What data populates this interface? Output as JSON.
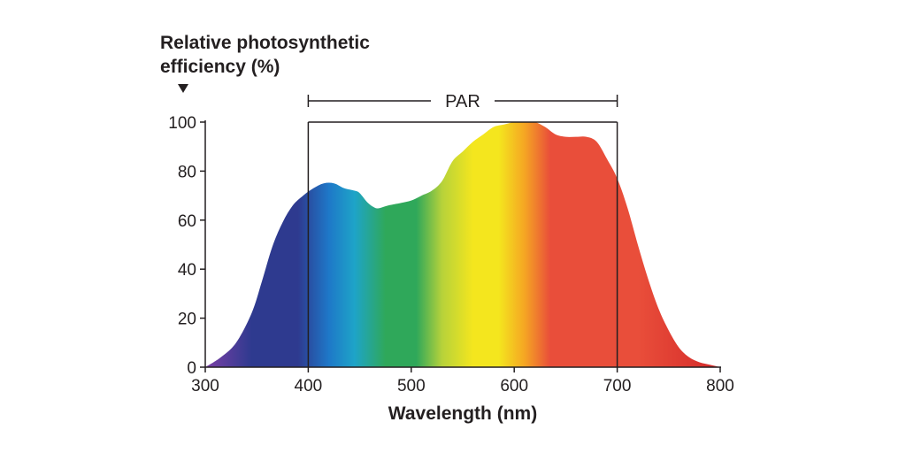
{
  "chart_data": {
    "type": "area",
    "ylabel_line1": "Relative photosynthetic",
    "ylabel_line2": "efficiency (%)",
    "xlabel": "Wavelength (nm)",
    "xlim": [
      300,
      800
    ],
    "ylim": [
      0,
      100
    ],
    "x_ticks": [
      300,
      400,
      500,
      600,
      700,
      800
    ],
    "y_ticks": [
      0,
      20,
      40,
      60,
      80,
      100
    ],
    "grid": false,
    "annotation": {
      "label": "PAR",
      "range": [
        400,
        700
      ]
    },
    "x": [
      300,
      315,
      330,
      345,
      355,
      365,
      375,
      385,
      395,
      405,
      415,
      425,
      435,
      445,
      450,
      458,
      465,
      470,
      478,
      490,
      500,
      510,
      520,
      530,
      540,
      550,
      560,
      570,
      580,
      590,
      600,
      610,
      620,
      630,
      640,
      650,
      660,
      670,
      680,
      690,
      700,
      710,
      720,
      730,
      740,
      750,
      760,
      770,
      780,
      790,
      800
    ],
    "values": [
      0,
      4,
      10,
      22,
      35,
      49,
      59,
      66,
      70,
      73,
      75,
      75,
      73,
      72,
      71,
      67,
      65,
      65,
      66,
      67,
      68,
      70,
      72,
      76,
      84,
      88,
      92,
      95,
      98,
      99,
      100,
      100,
      100,
      98,
      95,
      94,
      94,
      94,
      92,
      85,
      77,
      65,
      50,
      36,
      24,
      15,
      8,
      4,
      2,
      1,
      0
    ],
    "colors": {
      "violet": "#7b3fa6",
      "indigo": "#2e3a8f",
      "blue": "#1e78c8",
      "cyan": "#1ea4c8",
      "green": "#2fa85a",
      "yellow_green": "#b7d23a",
      "yellow": "#f4e61e",
      "orange": "#f5a623",
      "red": "#e94e3a",
      "deep_red": "#d42a2a"
    }
  }
}
